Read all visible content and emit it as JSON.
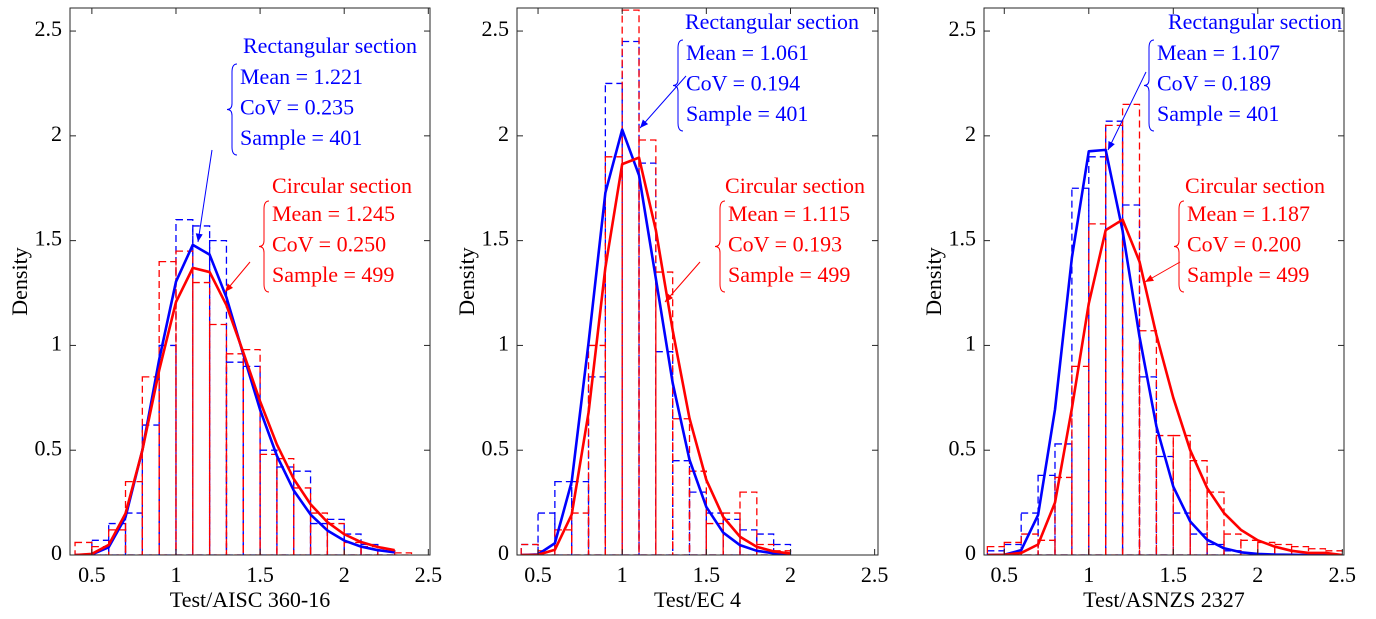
{
  "chart_data": [
    {
      "type": "histogram",
      "xlabel": "Test/AISC 360-16",
      "ylabel": "Density",
      "xlim": [
        0.37,
        2.51
      ],
      "ylim": [
        0,
        2.61
      ],
      "xticks": [
        0.5,
        1,
        1.5,
        2,
        2.5
      ],
      "yticks": [
        0,
        0.5,
        1,
        1.5,
        2,
        2.5
      ],
      "bins": [
        0.4,
        0.5,
        0.6,
        0.7,
        0.8,
        0.9,
        1.0,
        1.1,
        1.2,
        1.3,
        1.4,
        1.5,
        1.6,
        1.7,
        1.8,
        1.9,
        2.0,
        2.1,
        2.2,
        2.3,
        2.4
      ],
      "curve_x": [
        0.4,
        0.5,
        0.6,
        0.7,
        0.8,
        0.9,
        1.0,
        1.1,
        1.2,
        1.3,
        1.4,
        1.5,
        1.6,
        1.7,
        1.8,
        1.9,
        2.0,
        2.1,
        2.2,
        2.3
      ],
      "series": [
        {
          "name": "Rectangular section",
          "color": "#0000ff",
          "values": [
            0,
            0.07,
            0.15,
            0.2,
            0.62,
            1.0,
            1.6,
            1.57,
            1.5,
            0.92,
            0.9,
            0.5,
            0.42,
            0.4,
            0.15,
            0.17,
            0.1,
            0.05,
            0.02,
            0
          ],
          "curve": [
            0,
            0.003,
            0.037,
            0.181,
            0.5,
            0.932,
            1.304,
            1.48,
            1.433,
            1.229,
            0.958,
            0.693,
            0.473,
            0.308,
            0.193,
            0.117,
            0.069,
            0.04,
            0.023,
            0.013
          ],
          "annotation": [
            "Mean = 1.221",
            "CoV = 0.235",
            "Sample = 401"
          ]
        },
        {
          "name": "Circular section",
          "color": "#ff0000",
          "values": [
            0.06,
            0.04,
            0.12,
            0.35,
            0.85,
            1.4,
            1.45,
            1.3,
            1.1,
            0.96,
            0.98,
            0.48,
            0.46,
            0.32,
            0.2,
            0.15,
            0.06,
            0.04,
            0.02,
            0.01
          ],
          "curve": [
            0,
            0.005,
            0.048,
            0.198,
            0.499,
            0.881,
            1.207,
            1.37,
            1.35,
            1.192,
            0.967,
            0.733,
            0.527,
            0.363,
            0.242,
            0.157,
            0.099,
            0.062,
            0.038,
            0.023
          ],
          "annotation": [
            "Mean = 1.245",
            "CoV = 0.250",
            "Sample = 499"
          ]
        }
      ]
    },
    {
      "type": "histogram",
      "xlabel": "Test/EC 4",
      "ylabel": "Density",
      "xlim": [
        0.375,
        2.52
      ],
      "ylim": [
        0,
        2.61
      ],
      "xticks": [
        0.5,
        1,
        1.5,
        2,
        2.5
      ],
      "yticks": [
        0,
        0.5,
        1,
        1.5,
        2,
        2.5
      ],
      "bins": [
        0.4,
        0.5,
        0.6,
        0.7,
        0.8,
        0.9,
        1.0,
        1.1,
        1.2,
        1.3,
        1.4,
        1.5,
        1.6,
        1.7,
        1.8,
        1.9,
        2.0
      ],
      "curve_x": [
        0.4,
        0.5,
        0.6,
        0.7,
        0.8,
        0.9,
        1.0,
        1.1,
        1.2,
        1.3,
        1.4,
        1.5,
        1.6,
        1.7,
        1.8,
        1.9,
        2.0
      ],
      "series": [
        {
          "name": "Rectangular section",
          "color": "#0000ff",
          "values": [
            0.05,
            0.2,
            0.35,
            0.35,
            0.85,
            2.25,
            2.45,
            1.87,
            0.97,
            0.45,
            0.3,
            0.2,
            0.17,
            0.12,
            0.1,
            0.05
          ],
          "curve": [
            0,
            0.003,
            0.056,
            0.35,
            1.012,
            1.728,
            2.03,
            1.812,
            1.319,
            0.821,
            0.454,
            0.229,
            0.107,
            0.047,
            0.02,
            0.008,
            0.003
          ],
          "annotation": [
            "Mean = 1.061",
            "CoV = 0.194",
            "Sample = 401"
          ]
        },
        {
          "name": "Circular section",
          "color": "#ff0000",
          "values": [
            0.05,
            0.02,
            0.12,
            0.2,
            1.0,
            1.9,
            2.6,
            1.98,
            1.35,
            0.65,
            0.4,
            0.15,
            0.2,
            0.3,
            0.05,
            0.02
          ],
          "curve": [
            0,
            0.001,
            0.025,
            0.193,
            0.679,
            1.371,
            1.865,
            1.896,
            1.55,
            1.072,
            0.652,
            0.358,
            0.182,
            0.087,
            0.039,
            0.017,
            0.007
          ],
          "annotation": [
            "Mean = 1.115",
            "CoV = 0.193",
            "Sample = 499"
          ]
        }
      ]
    },
    {
      "type": "histogram",
      "xlabel": "Test/ASNZS 2327",
      "ylabel": "Density",
      "xlim": [
        0.38,
        2.51
      ],
      "ylim": [
        0,
        2.61
      ],
      "xticks": [
        0.5,
        1,
        1.5,
        2,
        2.5
      ],
      "yticks": [
        0,
        0.5,
        1,
        1.5,
        2,
        2.5
      ],
      "bins": [
        0.4,
        0.5,
        0.6,
        0.7,
        0.8,
        0.9,
        1.0,
        1.1,
        1.2,
        1.3,
        1.4,
        1.5,
        1.6,
        1.7,
        1.8,
        1.9,
        2.0,
        2.1,
        2.2,
        2.3,
        2.4,
        2.5
      ],
      "curve_x": [
        0.4,
        0.5,
        0.6,
        0.7,
        0.8,
        0.9,
        1.0,
        1.1,
        1.2,
        1.3,
        1.4,
        1.5,
        1.6,
        1.7,
        1.8,
        1.9,
        2.0,
        2.1,
        2.2,
        2.3,
        2.4,
        2.5
      ],
      "series": [
        {
          "name": "Rectangular section",
          "color": "#0000ff",
          "values": [
            0.02,
            0.05,
            0.2,
            0.38,
            0.53,
            1.75,
            1.9,
            2.07,
            1.67,
            0.85,
            0.47,
            0.2,
            0.1,
            0.05,
            0.02,
            0,
            0,
            0,
            0,
            0,
            0
          ],
          "curve": [
            0,
            0.001,
            0.023,
            0.191,
            0.694,
            1.419,
            1.926,
            1.933,
            1.547,
            1.042,
            0.614,
            0.326,
            0.16,
            0.073,
            0.032,
            0.013,
            0.005,
            0.002,
            0.001,
            0,
            0,
            0
          ],
          "annotation": [
            "Mean = 1.107",
            "CoV = 0.189",
            "Sample = 401"
          ]
        },
        {
          "name": "Circular section",
          "color": "#ff0000",
          "values": [
            0.04,
            0.06,
            0.1,
            0.07,
            0.37,
            0.9,
            1.58,
            2.05,
            2.15,
            1.07,
            0.57,
            0.57,
            0.45,
            0.3,
            0.1,
            0.07,
            0.06,
            0.05,
            0.04,
            0.03,
            0.02
          ],
          "curve": [
            0,
            0.001,
            0.01,
            0.05,
            0.25,
            0.7,
            1.2,
            1.55,
            1.6,
            1.4,
            1.05,
            0.75,
            0.5,
            0.32,
            0.2,
            0.12,
            0.07,
            0.04,
            0.02,
            0.01,
            0.01,
            0
          ],
          "annotation": [
            "Mean = 1.187",
            "CoV = 0.200",
            "Sample = 499"
          ]
        }
      ]
    }
  ]
}
